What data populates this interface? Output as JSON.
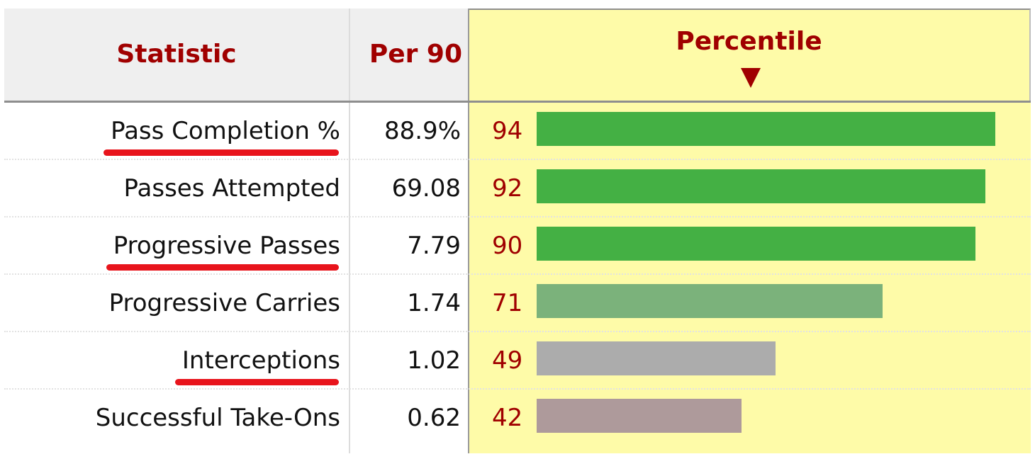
{
  "chart_data": {
    "type": "table",
    "columns": [
      "Statistic",
      "Per 90",
      "Percentile"
    ],
    "percentile_max": 100,
    "rows": [
      {
        "statistic": "Pass Completion %",
        "per90": "88.9%",
        "percentile": 94,
        "bar_color": "#44b044",
        "underlined": true
      },
      {
        "statistic": "Passes Attempted",
        "per90": "69.08",
        "percentile": 92,
        "bar_color": "#44b044",
        "underlined": false
      },
      {
        "statistic": "Progressive Passes",
        "per90": "7.79",
        "percentile": 90,
        "bar_color": "#44b044",
        "underlined": true
      },
      {
        "statistic": "Progressive Carries",
        "per90": "1.74",
        "percentile": 71,
        "bar_color": "#7bb27b",
        "underlined": false
      },
      {
        "statistic": "Interceptions",
        "per90": "1.02",
        "percentile": 49,
        "bar_color": "#acacac",
        "underlined": true
      },
      {
        "statistic": "Successful Take-Ons",
        "per90": "0.62",
        "percentile": 42,
        "bar_color": "#ae9a9b",
        "underlined": false
      }
    ]
  },
  "colors": {
    "header_text": "#a00000",
    "percentile_background": "#fefba8",
    "header_background": "#efefef",
    "underline": "#e8141c"
  },
  "icons": {
    "sort_indicator": "sort-down-triangle-icon"
  }
}
